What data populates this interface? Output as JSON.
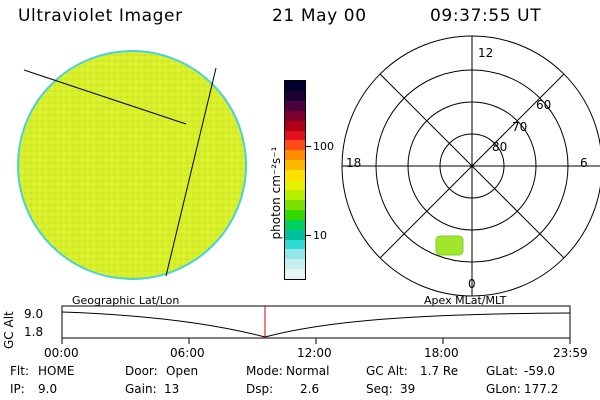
{
  "header": {
    "instrument": "Ultraviolet Imager",
    "date": "21 May 00",
    "time": "09:37:55 UT"
  },
  "colorbar": {
    "axis_label": "photon cm⁻²s⁻¹",
    "ticks": [
      "100",
      "10"
    ],
    "colors": [
      "#000033",
      "#1a0033",
      "#4b0040",
      "#7a0030",
      "#b00018",
      "#e0101e",
      "#ff4a1a",
      "#ff8c00",
      "#ffb800",
      "#ffe000",
      "#e8f000",
      "#b8ee00",
      "#7ee000",
      "#36d800",
      "#00d060",
      "#00c0a0",
      "#30d8d8",
      "#90e8e8",
      "#c8eeee",
      "#e8f4f4"
    ]
  },
  "polar_plot": {
    "mlt_labels": {
      "top": "12",
      "left": "18",
      "right": "6",
      "bottom": "0"
    },
    "lat_labels": [
      "60",
      "70",
      "80"
    ]
  },
  "timeline": {
    "y_axis_label": "GC Alt",
    "y_ticks": [
      "9.0",
      "1.8"
    ],
    "left_caption": "Geographic Lat/Lon",
    "right_caption": "Apex MLat/MLT",
    "x_ticks": [
      "00:00",
      "06:00",
      "12:00",
      "18:00",
      "23:59"
    ]
  },
  "status": {
    "rows": [
      [
        {
          "label": "Flt:",
          "value": "HOME"
        },
        {
          "label": "Door:",
          "value": "Open"
        },
        {
          "label": "Mode:",
          "value": "Normal"
        },
        {
          "label": "GC Alt:",
          "value": "1.7 Re"
        },
        {
          "label": "GLat:",
          "value": "-59.0"
        }
      ],
      [
        {
          "label": "IP:",
          "value": "9.0"
        },
        {
          "label": "Gain:",
          "value": "13"
        },
        {
          "label": "Dsp:",
          "value": "2.6"
        },
        {
          "label": "Seq:",
          "value": "39"
        },
        {
          "label": "GLon:",
          "value": "177.2"
        }
      ]
    ]
  },
  "colors": {
    "disk_fill": "#d6ee2a",
    "disk_edge": "#49d2d8",
    "blob_fill": "#a2e62c",
    "cursor": "#dd0000"
  }
}
